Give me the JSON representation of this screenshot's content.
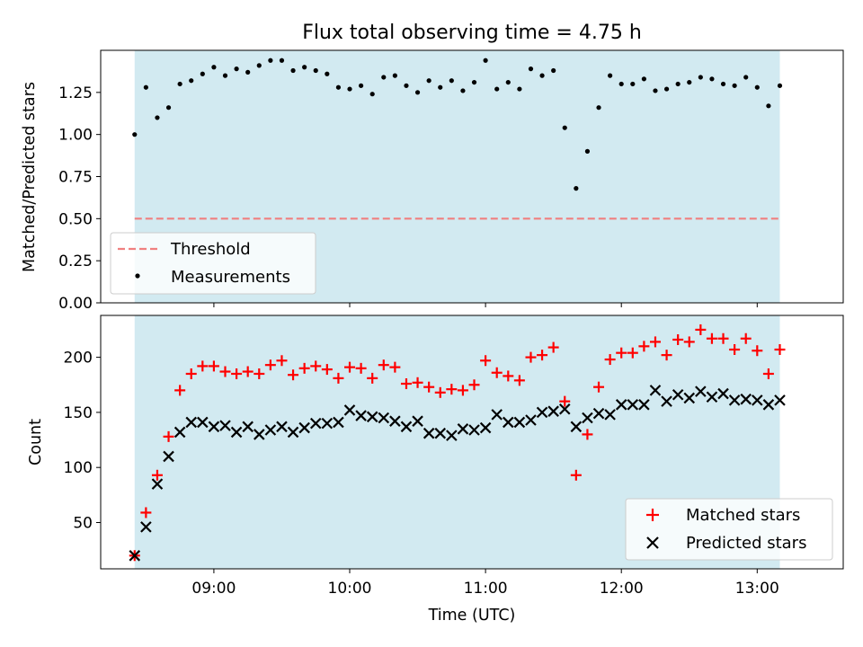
{
  "title": "Flux total observing time = 4.75 h",
  "colors": {
    "observing_band": "#add8e6",
    "threshold": "#f08080",
    "measurements": "#000000",
    "matched": "#ff0000",
    "predicted": "#000000"
  },
  "chart_data": [
    {
      "type": "scatter",
      "panel": "top",
      "ylabel": "Matched/Predicted stars",
      "xlim": [
        "08:10",
        "13:38"
      ],
      "ylim": [
        0.0,
        1.5
      ],
      "yticks": [
        0.0,
        0.25,
        0.5,
        0.75,
        1.0,
        1.25
      ],
      "ytick_labels": [
        "0.00",
        "0.25",
        "0.50",
        "0.75",
        "1.00",
        "1.25"
      ],
      "shaded_span": [
        "08:25",
        "13:10"
      ],
      "legend": {
        "placement": "lower-left",
        "entries": [
          "Threshold",
          "Measurements"
        ]
      },
      "threshold": {
        "name": "Threshold",
        "y": 0.5
      },
      "series": [
        {
          "name": "Measurements",
          "x": [
            "08:25",
            "08:30",
            "08:35",
            "08:40",
            "08:45",
            "08:50",
            "08:55",
            "09:00",
            "09:05",
            "09:10",
            "09:15",
            "09:20",
            "09:25",
            "09:30",
            "09:35",
            "09:40",
            "09:45",
            "09:50",
            "09:55",
            "10:00",
            "10:05",
            "10:10",
            "10:15",
            "10:20",
            "10:25",
            "10:30",
            "10:35",
            "10:40",
            "10:45",
            "10:50",
            "10:55",
            "11:00",
            "11:05",
            "11:10",
            "11:15",
            "11:20",
            "11:25",
            "11:30",
            "11:35",
            "11:40",
            "11:45",
            "11:50",
            "11:55",
            "12:00",
            "12:05",
            "12:10",
            "12:15",
            "12:20",
            "12:25",
            "12:30",
            "12:35",
            "12:40",
            "12:45",
            "12:50",
            "12:55",
            "13:00",
            "13:05",
            "13:10"
          ],
          "y": [
            1.0,
            1.28,
            1.1,
            1.16,
            1.3,
            1.32,
            1.36,
            1.4,
            1.35,
            1.39,
            1.37,
            1.41,
            1.44,
            1.44,
            1.38,
            1.4,
            1.38,
            1.36,
            1.28,
            1.27,
            1.29,
            1.24,
            1.34,
            1.35,
            1.29,
            1.25,
            1.32,
            1.28,
            1.32,
            1.26,
            1.31,
            1.44,
            1.27,
            1.31,
            1.27,
            1.39,
            1.35,
            1.38,
            1.04,
            0.68,
            0.9,
            1.16,
            1.35,
            1.3,
            1.3,
            1.33,
            1.26,
            1.27,
            1.3,
            1.31,
            1.34,
            1.33,
            1.3,
            1.29,
            1.34,
            1.28,
            1.17,
            1.29
          ]
        }
      ]
    },
    {
      "type": "scatter",
      "panel": "bottom",
      "xlabel": "Time (UTC)",
      "ylabel": "Count",
      "xlim": [
        "08:10",
        "13:38"
      ],
      "ylim": [
        8,
        238
      ],
      "xticks": [
        "09:00",
        "10:00",
        "11:00",
        "12:00",
        "13:00"
      ],
      "xtick_labels": [
        "09:00",
        "10:00",
        "11:00",
        "12:00",
        "13:00"
      ],
      "yticks": [
        50,
        100,
        150,
        200
      ],
      "ytick_labels": [
        "50",
        "100",
        "150",
        "200"
      ],
      "shaded_span": [
        "08:25",
        "13:10"
      ],
      "legend": {
        "placement": "lower-right",
        "entries": [
          "Matched stars",
          "Predicted stars"
        ]
      },
      "series": [
        {
          "name": "Matched stars",
          "marker": "+",
          "x": [
            "08:25",
            "08:30",
            "08:35",
            "08:40",
            "08:45",
            "08:50",
            "08:55",
            "09:00",
            "09:05",
            "09:10",
            "09:15",
            "09:20",
            "09:25",
            "09:30",
            "09:35",
            "09:40",
            "09:45",
            "09:50",
            "09:55",
            "10:00",
            "10:05",
            "10:10",
            "10:15",
            "10:20",
            "10:25",
            "10:30",
            "10:35",
            "10:40",
            "10:45",
            "10:50",
            "10:55",
            "11:00",
            "11:05",
            "11:10",
            "11:15",
            "11:20",
            "11:25",
            "11:30",
            "11:35",
            "11:40",
            "11:45",
            "11:50",
            "11:55",
            "12:00",
            "12:05",
            "12:10",
            "12:15",
            "12:20",
            "12:25",
            "12:30",
            "12:35",
            "12:40",
            "12:45",
            "12:50",
            "12:55",
            "13:00",
            "13:05",
            "13:10"
          ],
          "y": [
            20,
            59,
            93,
            128,
            170,
            185,
            192,
            192,
            187,
            185,
            187,
            185,
            193,
            197,
            184,
            190,
            192,
            189,
            181,
            191,
            190,
            181,
            193,
            191,
            176,
            177,
            173,
            168,
            171,
            170,
            175,
            197,
            186,
            183,
            179,
            200,
            202,
            209,
            160,
            93,
            130,
            173,
            198,
            204,
            204,
            210,
            214,
            202,
            216,
            214,
            225,
            217,
            217,
            207,
            217,
            206,
            185,
            207
          ]
        },
        {
          "name": "Predicted stars",
          "marker": "x",
          "x": [
            "08:25",
            "08:30",
            "08:35",
            "08:40",
            "08:45",
            "08:50",
            "08:55",
            "09:00",
            "09:05",
            "09:10",
            "09:15",
            "09:20",
            "09:25",
            "09:30",
            "09:35",
            "09:40",
            "09:45",
            "09:50",
            "09:55",
            "10:00",
            "10:05",
            "10:10",
            "10:15",
            "10:20",
            "10:25",
            "10:30",
            "10:35",
            "10:40",
            "10:45",
            "10:50",
            "10:55",
            "11:00",
            "11:05",
            "11:10",
            "11:15",
            "11:20",
            "11:25",
            "11:30",
            "11:35",
            "11:40",
            "11:45",
            "11:50",
            "11:55",
            "12:00",
            "12:05",
            "12:10",
            "12:15",
            "12:20",
            "12:25",
            "12:30",
            "12:35",
            "12:40",
            "12:45",
            "12:50",
            "12:55",
            "13:00",
            "13:05",
            "13:10"
          ],
          "y": [
            20,
            46,
            85,
            110,
            132,
            141,
            141,
            137,
            138,
            132,
            137,
            130,
            134,
            137,
            132,
            136,
            140,
            140,
            141,
            152,
            147,
            146,
            145,
            142,
            137,
            142,
            131,
            131,
            129,
            135,
            134,
            136,
            148,
            141,
            141,
            143,
            150,
            151,
            153,
            137,
            145,
            149,
            148,
            157,
            157,
            157,
            170,
            160,
            166,
            163,
            169,
            164,
            167,
            161,
            162,
            161,
            157,
            161
          ]
        }
      ]
    }
  ]
}
